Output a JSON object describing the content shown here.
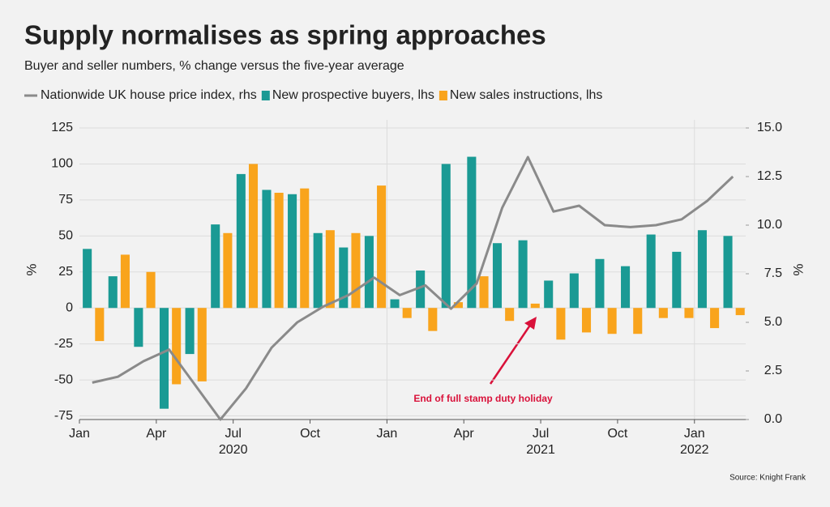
{
  "chart_data": {
    "type": "bar",
    "title": "Supply normalises as spring approaches",
    "subtitle": "Buyer and seller numbers, % change versus the five-year average",
    "source": "Source: Knight Frank",
    "annotation": "End of full stamp duty holiday",
    "ylabel": "%",
    "y2label": "%",
    "categories": [
      "Jan",
      null,
      null,
      "Apr",
      null,
      null,
      "Jul",
      null,
      null,
      "Oct",
      null,
      null,
      "Jan",
      null,
      null,
      "Apr",
      null,
      null,
      "Jul",
      null,
      null,
      "Oct",
      null,
      null,
      "Jan",
      null
    ],
    "year_labels": [
      null,
      null,
      null,
      null,
      null,
      null,
      "2020",
      null,
      null,
      null,
      null,
      null,
      null,
      null,
      null,
      null,
      null,
      null,
      "2021",
      null,
      null,
      null,
      null,
      null,
      "2022",
      null
    ],
    "series": [
      {
        "name": "Nationwide UK house price index, rhs",
        "color": "#8a8a8a",
        "type": "line",
        "axis": "y2",
        "values": [
          1.9,
          2.2,
          3.0,
          3.6,
          1.8,
          0.0,
          1.6,
          3.7,
          5.0,
          5.8,
          6.4,
          7.3,
          6.4,
          6.9,
          5.7,
          7.0,
          10.9,
          13.5,
          10.7,
          11.0,
          10.0,
          9.9,
          10.0,
          10.3,
          11.25,
          12.5
        ]
      },
      {
        "name": "New prospective buyers, lhs",
        "color": "#1a9a94",
        "type": "bar",
        "values": [
          41,
          22,
          -27,
          -70,
          -32,
          58,
          93,
          82,
          79,
          52,
          42,
          50,
          6,
          26,
          100,
          105,
          45,
          47,
          19,
          24,
          34,
          29,
          51,
          39,
          54,
          50
        ]
      },
      {
        "name": "New sales instructions, lhs",
        "color": "#f9a41c",
        "type": "bar",
        "values": [
          -23,
          37,
          25,
          -53,
          -51,
          52,
          100,
          80,
          83,
          54,
          52,
          85,
          -7,
          -16,
          4,
          22,
          -9,
          3,
          -22,
          -17,
          -18,
          -18,
          -7,
          -7,
          -14,
          -5
        ]
      }
    ],
    "ylim": [
      -77.5,
      125
    ],
    "yticks": [
      -75,
      -50,
      -25,
      0,
      25,
      50,
      75,
      100,
      125
    ],
    "y2lim": [
      0,
      15
    ],
    "y2ticks": [
      {
        "value": 0,
        "label": "0.0"
      },
      {
        "value": 2.5,
        "label": "2.5"
      },
      {
        "value": 5,
        "label": "5.0"
      },
      {
        "value": 7.5,
        "label": "7.5"
      },
      {
        "value": 10,
        "label": "10.0"
      },
      {
        "value": 12.5,
        "label": "12.5"
      },
      {
        "value": 15,
        "label": "15.0"
      }
    ],
    "grid": true
  }
}
